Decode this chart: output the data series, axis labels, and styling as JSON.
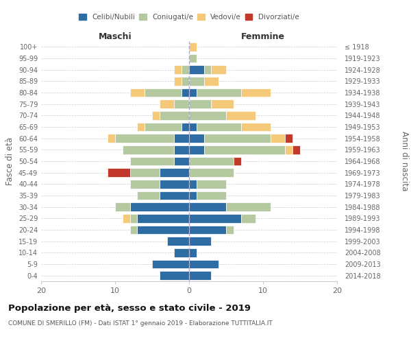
{
  "age_groups": [
    "0-4",
    "5-9",
    "10-14",
    "15-19",
    "20-24",
    "25-29",
    "30-34",
    "35-39",
    "40-44",
    "45-49",
    "50-54",
    "55-59",
    "60-64",
    "65-69",
    "70-74",
    "75-79",
    "80-84",
    "85-89",
    "90-94",
    "95-99",
    "100+"
  ],
  "birth_years": [
    "2014-2018",
    "2009-2013",
    "2004-2008",
    "1999-2003",
    "1994-1998",
    "1989-1993",
    "1984-1988",
    "1979-1983",
    "1974-1978",
    "1969-1973",
    "1964-1968",
    "1959-1963",
    "1954-1958",
    "1949-1953",
    "1944-1948",
    "1939-1943",
    "1934-1938",
    "1929-1933",
    "1924-1928",
    "1919-1923",
    "≤ 1918"
  ],
  "colors": {
    "celibi": "#2e6da4",
    "coniugati": "#b5c9a0",
    "vedovi": "#f5c97a",
    "divorziati": "#c0392b"
  },
  "maschi": {
    "celibi": [
      4,
      5,
      2,
      3,
      7,
      7,
      8,
      4,
      4,
      4,
      2,
      2,
      2,
      1,
      0,
      0,
      1,
      0,
      0,
      0,
      0
    ],
    "coniugati": [
      0,
      0,
      0,
      0,
      1,
      1,
      2,
      3,
      4,
      4,
      6,
      7,
      8,
      5,
      4,
      2,
      5,
      1,
      1,
      0,
      0
    ],
    "vedovi": [
      0,
      0,
      0,
      0,
      0,
      1,
      0,
      0,
      0,
      0,
      0,
      0,
      1,
      1,
      1,
      2,
      2,
      1,
      1,
      0,
      0
    ],
    "divorziati": [
      0,
      0,
      0,
      0,
      0,
      0,
      0,
      0,
      0,
      3,
      0,
      0,
      0,
      0,
      0,
      0,
      0,
      0,
      0,
      0,
      0
    ]
  },
  "femmine": {
    "celibi": [
      3,
      4,
      1,
      3,
      5,
      7,
      5,
      1,
      1,
      0,
      0,
      2,
      2,
      1,
      0,
      0,
      1,
      0,
      2,
      0,
      0
    ],
    "coniugati": [
      0,
      0,
      0,
      0,
      1,
      2,
      6,
      4,
      4,
      6,
      6,
      11,
      9,
      6,
      5,
      3,
      6,
      2,
      1,
      1,
      0
    ],
    "vedovi": [
      0,
      0,
      0,
      0,
      0,
      0,
      0,
      0,
      0,
      0,
      0,
      1,
      2,
      4,
      4,
      3,
      4,
      2,
      2,
      0,
      1
    ],
    "divorziati": [
      0,
      0,
      0,
      0,
      0,
      0,
      0,
      0,
      0,
      0,
      1,
      1,
      1,
      0,
      0,
      0,
      0,
      0,
      0,
      0,
      0
    ]
  },
  "xlim": [
    -20,
    20
  ],
  "xticks": [
    -20,
    -10,
    0,
    10,
    20
  ],
  "xticklabels": [
    "20",
    "10",
    "0",
    "10",
    "20"
  ],
  "title": "Popolazione per età, sesso e stato civile - 2019",
  "subtitle": "COMUNE DI SMERILLO (FM) - Dati ISTAT 1° gennaio 2019 - Elaborazione TUTTITALIA.IT",
  "ylabel_left": "Fasce di età",
  "ylabel_right": "Anni di nascita",
  "maschi_label": "Maschi",
  "femmine_label": "Femmine",
  "legend_labels": [
    "Celibi/Nubili",
    "Coniugati/e",
    "Vedovi/e",
    "Divorziati/e"
  ],
  "background_color": "#ffffff",
  "grid_color": "#cccccc"
}
